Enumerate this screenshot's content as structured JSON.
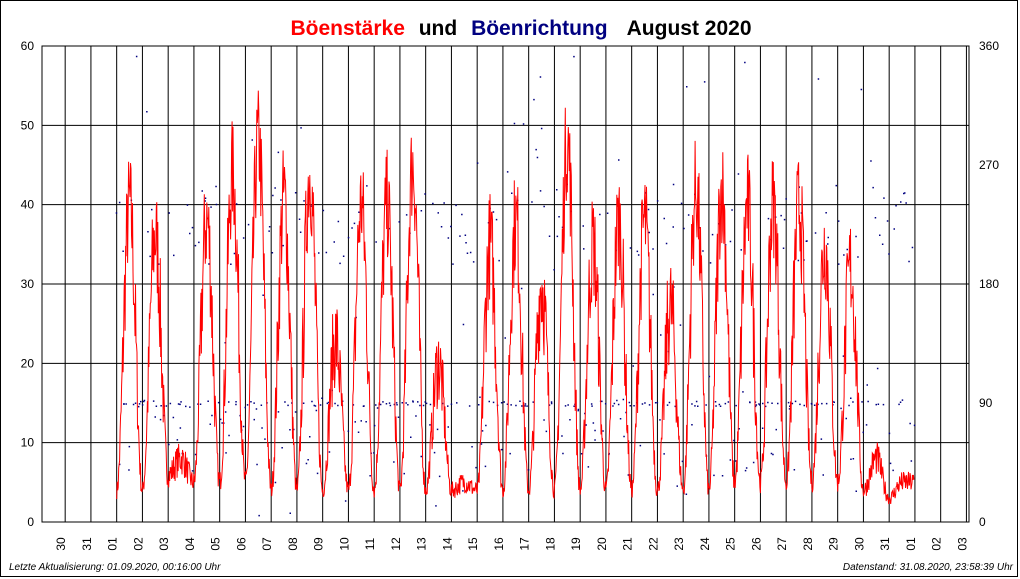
{
  "chart_data": {
    "type": "line",
    "title_parts": [
      {
        "text": "Böenstärke",
        "color": "#ff0000"
      },
      {
        "text": "und",
        "color": "#000000"
      },
      {
        "text": "Böenrichtung",
        "color": "#000080"
      },
      {
        "text": "August 2020",
        "color": "#000000"
      }
    ],
    "y_left": {
      "min": 0,
      "max": 60,
      "ticks": [
        0,
        10,
        20,
        30,
        40,
        50,
        60
      ]
    },
    "y_right": {
      "min": 0,
      "max": 360,
      "ticks": [
        0,
        90,
        180,
        270,
        360
      ]
    },
    "x_ticks": [
      "30",
      "31",
      "01",
      "02",
      "03",
      "04",
      "05",
      "06",
      "07",
      "08",
      "09",
      "10",
      "11",
      "12",
      "13",
      "14",
      "15",
      "16",
      "17",
      "18",
      "19",
      "20",
      "21",
      "22",
      "23",
      "24",
      "25",
      "26",
      "27",
      "28",
      "29",
      "30",
      "31",
      "01",
      "02",
      "03"
    ],
    "grid": true,
    "series": [
      {
        "kind": "line",
        "axis": "left",
        "color": "#ff0000",
        "days": [
          1,
          1.5,
          2,
          2.5,
          3,
          3.5,
          4,
          4.5,
          5,
          5.5,
          6,
          6.5,
          7,
          7.5,
          8,
          8.5,
          9,
          9.5,
          10,
          10.5,
          11,
          11.5,
          12,
          12.5,
          13,
          13.5,
          14,
          14.5,
          15,
          15.5,
          16,
          16.5,
          17,
          17.5,
          18,
          18.5,
          19,
          19.5,
          20,
          20.5,
          21,
          21.5,
          22,
          22.5,
          23,
          23.5,
          24,
          24.5,
          25,
          25.5,
          26,
          26.5,
          27,
          27.5,
          28,
          28.5,
          29,
          29.5,
          30,
          30.5,
          31,
          31.5,
          32
        ],
        "peaks": [
          4,
          40,
          4,
          36,
          6,
          8,
          5,
          38,
          5,
          44,
          5,
          48,
          4,
          41,
          4,
          44,
          4,
          23,
          4,
          40,
          4,
          40,
          4,
          45,
          4,
          20,
          4,
          5,
          4,
          35,
          4,
          38,
          4,
          30,
          4,
          48,
          4,
          35,
          4,
          38,
          4,
          38,
          4,
          27,
          4,
          42,
          4,
          42,
          5,
          40,
          5,
          40,
          5,
          40,
          5,
          35,
          5,
          32,
          4,
          8,
          3,
          5,
          5
        ]
      },
      {
        "kind": "scatter",
        "axis": "right",
        "color": "#000080",
        "levels": [
          65,
          225,
          90
        ]
      }
    ]
  },
  "footer": {
    "left": "Letzte Aktualisierung: 01.09.2020, 00:16:00 Uhr",
    "right": "Datenstand: 31.08.2020, 23:58:39 Uhr"
  }
}
